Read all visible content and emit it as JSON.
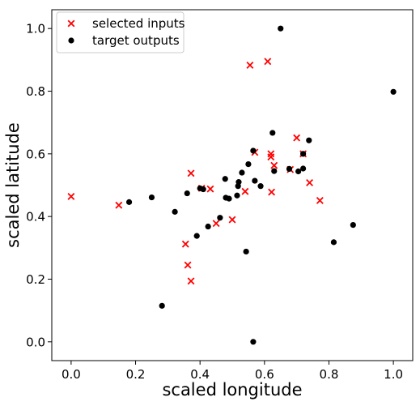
{
  "chart_data": {
    "type": "scatter",
    "title": "",
    "xlabel": "scaled longitude",
    "ylabel": "scaled latitude",
    "xlim": [
      -0.06,
      1.06
    ],
    "ylim": [
      -0.06,
      1.06
    ],
    "xticks": [
      "0.0",
      "0.2",
      "0.4",
      "0.6",
      "0.8",
      "1.0"
    ],
    "yticks": [
      "0.0",
      "0.2",
      "0.4",
      "0.6",
      "0.8",
      "1.0"
    ],
    "grid": false,
    "legend_position": "top-left",
    "series": [
      {
        "name": "selected inputs",
        "marker": "x",
        "color": "#ff0000",
        "points": [
          [
            0.0,
            0.464
          ],
          [
            0.148,
            0.436
          ],
          [
            0.355,
            0.312
          ],
          [
            0.362,
            0.245
          ],
          [
            0.372,
            0.194
          ],
          [
            0.372,
            0.538
          ],
          [
            0.405,
            0.49
          ],
          [
            0.432,
            0.488
          ],
          [
            0.45,
            0.378
          ],
          [
            0.5,
            0.39
          ],
          [
            0.54,
            0.48
          ],
          [
            0.555,
            0.883
          ],
          [
            0.57,
            0.605
          ],
          [
            0.61,
            0.895
          ],
          [
            0.62,
            0.6
          ],
          [
            0.62,
            0.59
          ],
          [
            0.622,
            0.478
          ],
          [
            0.63,
            0.563
          ],
          [
            0.68,
            0.55
          ],
          [
            0.7,
            0.651
          ],
          [
            0.72,
            0.6
          ],
          [
            0.74,
            0.508
          ],
          [
            0.772,
            0.451
          ]
        ]
      },
      {
        "name": "target outputs",
        "marker": "o",
        "color": "#000000",
        "points": [
          [
            0.18,
            0.446
          ],
          [
            0.25,
            0.461
          ],
          [
            0.282,
            0.115
          ],
          [
            0.322,
            0.415
          ],
          [
            0.36,
            0.474
          ],
          [
            0.39,
            0.338
          ],
          [
            0.4,
            0.49
          ],
          [
            0.41,
            0.487
          ],
          [
            0.425,
            0.368
          ],
          [
            0.462,
            0.396
          ],
          [
            0.478,
            0.52
          ],
          [
            0.48,
            0.46
          ],
          [
            0.49,
            0.457
          ],
          [
            0.515,
            0.467
          ],
          [
            0.518,
            0.497
          ],
          [
            0.52,
            0.51
          ],
          [
            0.53,
            0.54
          ],
          [
            0.543,
            0.288
          ],
          [
            0.55,
            0.567
          ],
          [
            0.565,
            0.61
          ],
          [
            0.565,
            0.0
          ],
          [
            0.57,
            0.514
          ],
          [
            0.588,
            0.497
          ],
          [
            0.625,
            0.667
          ],
          [
            0.63,
            0.545
          ],
          [
            0.65,
            1.0
          ],
          [
            0.677,
            0.552
          ],
          [
            0.705,
            0.544
          ],
          [
            0.72,
            0.553
          ],
          [
            0.72,
            0.6
          ],
          [
            0.738,
            0.643
          ],
          [
            0.815,
            0.318
          ],
          [
            0.875,
            0.373
          ],
          [
            1.0,
            0.798
          ]
        ]
      }
    ]
  }
}
